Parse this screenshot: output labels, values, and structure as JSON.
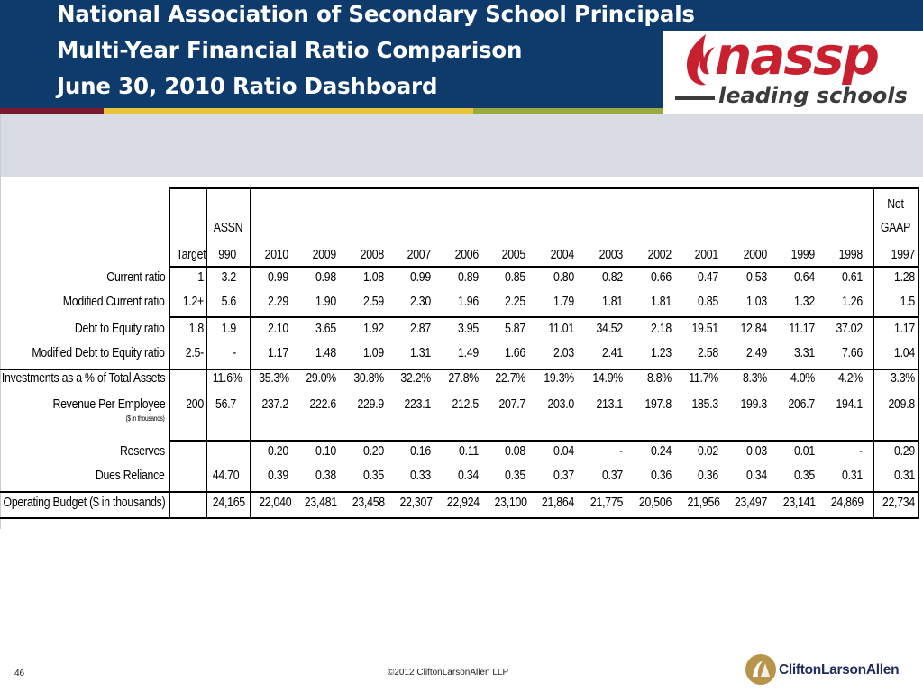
{
  "header": {
    "title_lines": [
      "National Association of Secondary School Principals",
      "Multi-Year Financial Ratio Comparison",
      "June 30, 2010  Ratio Dashboard"
    ],
    "logo": {
      "word": "nassp",
      "tagline": "leading schools"
    },
    "colors": {
      "navy": "#0e3b6b",
      "stripe_maroon": "#7a1830",
      "stripe_gold": "#e8c43a",
      "stripe_green": "#9aaa3c",
      "logo_red": "#c8202f"
    }
  },
  "table": {
    "header_top": {
      "assn": "ASSN",
      "not": "Not",
      "gaap": "GAAP"
    },
    "columns": [
      "Target",
      "990",
      "2010",
      "2009",
      "2008",
      "2007",
      "2006",
      "2005",
      "2004",
      "2003",
      "2002",
      "2001",
      "2000",
      "1999",
      "1998",
      "1997"
    ],
    "rows": [
      {
        "label": "Current ratio",
        "cells": [
          "1",
          "3.2",
          "0.99",
          "0.98",
          "1.08",
          "0.99",
          "0.89",
          "0.85",
          "0.80",
          "0.82",
          "0.66",
          "0.47",
          "0.53",
          "0.64",
          "0.61",
          "1.28"
        ]
      },
      {
        "label": "Modified Current ratio",
        "cells": [
          "1.2+",
          "5.6",
          "2.29",
          "1.90",
          "2.59",
          "2.30",
          "1.96",
          "2.25",
          "1.79",
          "1.81",
          "1.81",
          "0.85",
          "1.03",
          "1.32",
          "1.26",
          "1.5"
        ]
      },
      {
        "label": "Debt to Equity ratio",
        "cells": [
          "1.8",
          "1.9",
          "2.10",
          "3.65",
          "1.92",
          "2.87",
          "3.95",
          "5.87",
          "11.01",
          "34.52",
          "2.18",
          "19.51",
          "12.84",
          "11.17",
          "37.02",
          "1.17"
        ]
      },
      {
        "label": "Modified Debt to Equity ratio",
        "cells": [
          "2.5-",
          "-",
          "1.17",
          "1.48",
          "1.09",
          "1.31",
          "1.49",
          "1.66",
          "2.03",
          "2.41",
          "1.23",
          "2.58",
          "2.49",
          "3.31",
          "7.66",
          "1.04"
        ]
      },
      {
        "label": "Investments as a % of Total Assets",
        "cells": [
          "",
          "11.6%",
          "35.3%",
          "29.0%",
          "30.8%",
          "32.2%",
          "27.8%",
          "22.7%",
          "19.3%",
          "14.9%",
          "8.8%",
          "11.7%",
          "8.3%",
          "4.0%",
          "4.2%",
          "3.3%"
        ]
      },
      {
        "label": "Revenue Per Employee",
        "sublabel": "($ in thousands)",
        "cells": [
          "200",
          "56.7",
          "237.2",
          "222.6",
          "229.9",
          "223.1",
          "212.5",
          "207.7",
          "203.0",
          "213.1",
          "197.8",
          "185.3",
          "199.3",
          "206.7",
          "194.1",
          "209.8"
        ]
      },
      {
        "label": "Reserves",
        "cells": [
          "",
          "",
          "0.20",
          "0.10",
          "0.20",
          "0.16",
          "0.11",
          "0.08",
          "0.04",
          "-",
          "0.24",
          "0.02",
          "0.03",
          "0.01",
          "-",
          "0.29"
        ]
      },
      {
        "label": "Dues Reliance",
        "cells": [
          "",
          "44.70",
          "0.39",
          "0.38",
          "0.35",
          "0.33",
          "0.34",
          "0.35",
          "0.37",
          "0.37",
          "0.36",
          "0.36",
          "0.34",
          "0.35",
          "0.31",
          "0.31"
        ]
      },
      {
        "label": "Operating Budget ($ in thousands)",
        "cells": [
          "",
          "24,165",
          "22,040",
          "23,481",
          "23,458",
          "22,307",
          "22,924",
          "23,100",
          "21,864",
          "21,775",
          "20,506",
          "21,956",
          "23,497",
          "23,141",
          "24,869",
          "22,734"
        ]
      }
    ]
  },
  "footer": {
    "page_number": "46",
    "copyright": "©2012 CliftonLarsonAllen LLP",
    "brand": "CliftonLarsonAllen"
  }
}
